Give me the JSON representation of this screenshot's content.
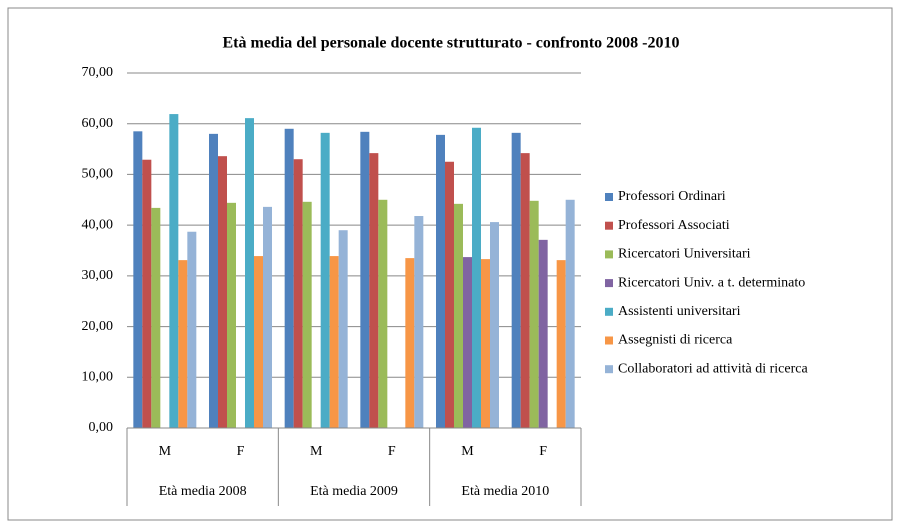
{
  "chart_data": {
    "type": "bar",
    "title": "Età media del personale docente strutturato - confronto 2008 -2010",
    "categories": [
      "M",
      "F",
      "M",
      "F",
      "M",
      "F"
    ],
    "groups": [
      "Età media 2008",
      "Età media 2009",
      "Età media 2010"
    ],
    "series": [
      {
        "name": "Professori Ordinari",
        "color": "#4f81bd",
        "values": [
          58.5,
          58.0,
          59.0,
          58.4,
          57.8,
          58.2
        ]
      },
      {
        "name": "Professori Associati",
        "color": "#c0504d",
        "values": [
          52.9,
          53.6,
          53.0,
          54.2,
          52.5,
          54.2
        ]
      },
      {
        "name": "Ricercatori Universitari",
        "color": "#9bbb59",
        "values": [
          43.4,
          44.4,
          44.6,
          45.0,
          44.2,
          44.8
        ]
      },
      {
        "name": "Ricercatori Univ. a t. determinato",
        "color": "#8064a2",
        "values": [
          null,
          null,
          null,
          null,
          33.7,
          37.1
        ]
      },
      {
        "name": "Assistenti universitari",
        "color": "#4bacc6",
        "values": [
          61.9,
          61.1,
          58.2,
          null,
          59.2,
          null
        ]
      },
      {
        "name": "Assegnisti di ricerca",
        "color": "#f79646",
        "values": [
          33.1,
          33.9,
          33.9,
          33.5,
          33.3,
          33.1
        ]
      },
      {
        "name": "Collaboratori ad attività di ricerca",
        "color": "#95b3d7",
        "values": [
          38.7,
          43.6,
          39.0,
          41.8,
          40.6,
          45.0
        ]
      }
    ],
    "ylim": [
      0,
      70
    ],
    "yticks": [
      {
        "value": 0,
        "label": "0,00"
      },
      {
        "value": 10,
        "label": "10,00"
      },
      {
        "value": 20,
        "label": "20,00"
      },
      {
        "value": 30,
        "label": "30,00"
      },
      {
        "value": 40,
        "label": "40,00"
      },
      {
        "value": 50,
        "label": "50,00"
      },
      {
        "value": 60,
        "label": "60,00"
      },
      {
        "value": 70,
        "label": "70,00"
      }
    ],
    "grid": true,
    "legend": "right"
  }
}
